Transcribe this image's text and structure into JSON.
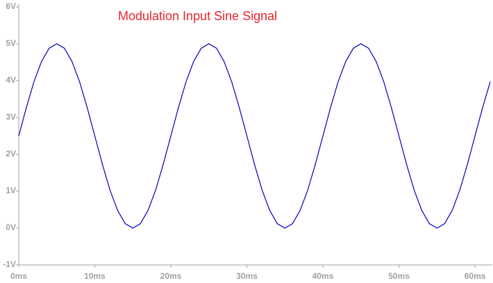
{
  "chart_data": {
    "type": "line",
    "title": "Modulation Input Sine Signal",
    "x": [
      0,
      1,
      2,
      3,
      4,
      5,
      6,
      7,
      8,
      9,
      10,
      11,
      12,
      13,
      14,
      15,
      16,
      17,
      18,
      19,
      20,
      21,
      22,
      23,
      24,
      25,
      26,
      27,
      28,
      29,
      30,
      31,
      32,
      33,
      34,
      35,
      36,
      37,
      38,
      39,
      40,
      41,
      42,
      43,
      44,
      45,
      46,
      47,
      48,
      49,
      50,
      51,
      52,
      53,
      54,
      55,
      56,
      57,
      58,
      59,
      60,
      61,
      62
    ],
    "values": [
      2.5,
      3.27,
      3.97,
      4.52,
      4.88,
      5,
      4.88,
      4.52,
      3.97,
      3.27,
      2.5,
      1.73,
      1.03,
      0.48,
      0.12,
      0,
      0.12,
      0.48,
      1.03,
      1.73,
      2.5,
      3.27,
      3.97,
      4.52,
      4.88,
      5,
      4.88,
      4.52,
      3.97,
      3.27,
      2.5,
      1.73,
      1.03,
      0.48,
      0.12,
      0,
      0.12,
      0.48,
      1.03,
      1.73,
      2.5,
      3.27,
      3.97,
      4.52,
      4.88,
      5,
      4.88,
      4.52,
      3.97,
      3.27,
      2.5,
      1.73,
      1.03,
      0.48,
      0.12,
      0,
      0.12,
      0.48,
      1.03,
      1.73,
      2.5,
      3.27,
      3.97
    ],
    "color": "#0000c0",
    "xlim": [
      0,
      62
    ],
    "ylim": [
      -1,
      6
    ],
    "xticks": [
      {
        "value": 0,
        "label": "0ms"
      },
      {
        "value": 10,
        "label": "10ms"
      },
      {
        "value": 20,
        "label": "20ms"
      },
      {
        "value": 30,
        "label": "30ms"
      },
      {
        "value": 40,
        "label": "40ms"
      },
      {
        "value": 50,
        "label": "50ms"
      },
      {
        "value": 60,
        "label": "60ms"
      }
    ],
    "yticks": [
      {
        "value": -1,
        "label": "-1V"
      },
      {
        "value": 0,
        "label": "0V"
      },
      {
        "value": 1,
        "label": "1V"
      },
      {
        "value": 2,
        "label": "2V"
      },
      {
        "value": 3,
        "label": "3V"
      },
      {
        "value": 4,
        "label": "4V"
      },
      {
        "value": 5,
        "label": "5V"
      },
      {
        "value": 6,
        "label": "6V"
      }
    ]
  }
}
